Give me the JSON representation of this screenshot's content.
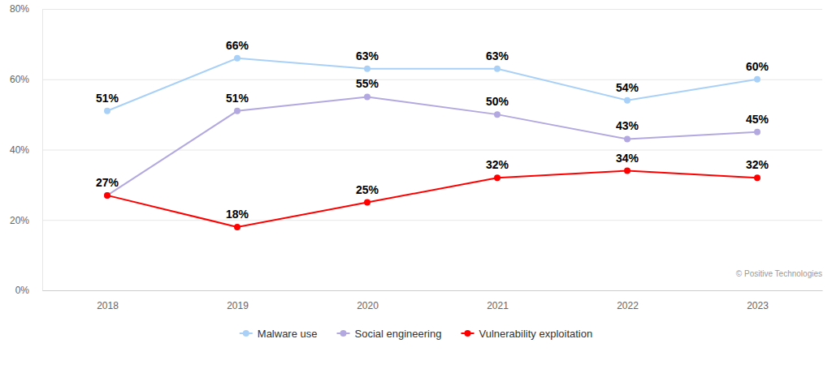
{
  "chart_data": {
    "type": "line",
    "categories": [
      "2018",
      "2019",
      "2020",
      "2021",
      "2022",
      "2023"
    ],
    "ylim": [
      0,
      80
    ],
    "yticks": [
      {
        "value": 0,
        "label": "0%"
      },
      {
        "value": 20,
        "label": "20%"
      },
      {
        "value": 40,
        "label": "40%"
      },
      {
        "value": 60,
        "label": "60%"
      },
      {
        "value": 80,
        "label": "80%"
      }
    ],
    "grid": true,
    "legend": "bottom",
    "data_labels": true,
    "marker": "circle",
    "annotations": [
      "© Positive Technologies"
    ],
    "series": [
      {
        "name": "Malware use",
        "color": "#a9d1f7",
        "values": [
          51,
          66,
          63,
          63,
          54,
          60
        ],
        "value_labels": [
          "51%",
          "66%",
          "63%",
          "63%",
          "54%",
          "60%"
        ]
      },
      {
        "name": "Social engineering",
        "color": "#b3a9e0",
        "values": [
          27,
          51,
          55,
          50,
          43,
          45
        ],
        "value_labels": [
          null,
          "51%",
          "55%",
          "50%",
          "43%",
          "45%"
        ]
      },
      {
        "name": "Vulnerability exploitation",
        "color": "#ff0000",
        "values": [
          27,
          18,
          25,
          32,
          34,
          32
        ],
        "value_labels": [
          "27%",
          "18%",
          "25%",
          "32%",
          "34%",
          "32%"
        ]
      }
    ]
  }
}
